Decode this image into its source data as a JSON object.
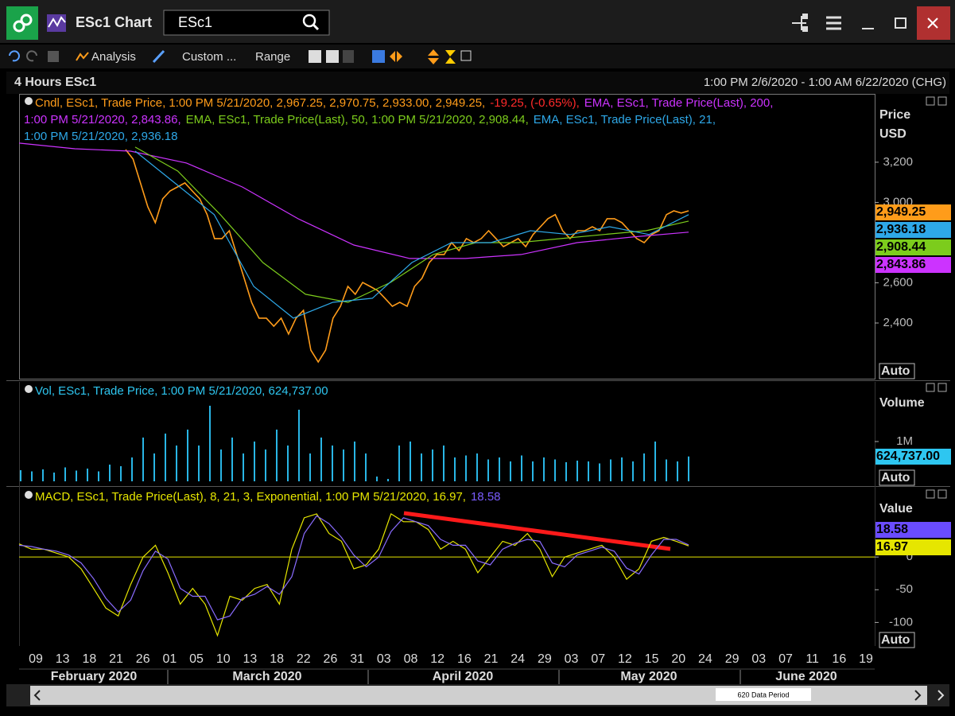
{
  "window": {
    "title": "ESc1 Chart",
    "search": "ESc1"
  },
  "toolbar": {
    "analysis": "Analysis",
    "custom": "Custom ...",
    "range": "Range"
  },
  "header": {
    "title": "4 Hours ESc1",
    "period": "1:00 PM 2/6/2020 - 1:00 AM 6/22/2020 (CHG)"
  },
  "chart_data": [
    {
      "type": "line",
      "ylabel": "Price",
      "yunit": "USD",
      "auto": "Auto",
      "legend": [
        {
          "text": "Cndl, ESc1, Trade Price, 1:00 PM 5/21/2020, 2,967.25, 2,970.75, 2,933.00, 2,949.25,",
          "color": "#ff9c1a"
        },
        {
          "text": "-19.25, (-0.65%),",
          "color": "#ff2a2a"
        },
        {
          "text": "EMA, ESc1, Trade Price(Last),  200,",
          "color": "#cc33ff"
        },
        {
          "text": "1:00 PM 5/21/2020, 2,843.86,",
          "color": "#cc33ff"
        },
        {
          "text": "EMA, ESc1, Trade Price(Last),  50,  1:00 PM 5/21/2020, 2,908.44,",
          "color": "#7ccc1c"
        },
        {
          "text": "EMA, ESc1, Trade Price(Last),  21,",
          "color": "#2ea8e8"
        },
        {
          "text": "1:00 PM 5/21/2020, 2,936.18",
          "color": "#2ea8e8"
        }
      ],
      "ylim": [
        2119,
        3540
      ],
      "yticks": [
        {
          "value": 2400,
          "label": "2,400"
        },
        {
          "value": 2600,
          "label": "2,600"
        },
        {
          "value": 3000,
          "label": "3,000"
        },
        {
          "value": 3200,
          "label": "3,200"
        }
      ],
      "series": [
        {
          "color": "#ff9c1a",
          "values": [
            3263,
            3216,
            3097,
            2978,
            2899,
            3018,
            3057,
            3077,
            3097,
            3057,
            3018,
            2939,
            2820,
            2820,
            2859,
            2741,
            2622,
            2503,
            2424,
            2424,
            2384,
            2424,
            2345,
            2424,
            2463,
            2265,
            2206,
            2265,
            2424,
            2483,
            2582,
            2543,
            2602,
            2582,
            2562,
            2523,
            2483,
            2503,
            2483,
            2582,
            2622,
            2701,
            2741,
            2741,
            2800,
            2760,
            2820,
            2800,
            2820,
            2859,
            2820,
            2780,
            2800,
            2820,
            2780,
            2840,
            2879,
            2919,
            2939,
            2859,
            2820,
            2859,
            2859,
            2879,
            2859,
            2919,
            2919,
            2899,
            2859,
            2820,
            2800,
            2840,
            2859,
            2939,
            2958,
            2947,
            2958
          ]
        },
        {
          "color": "#cc33ff",
          "values": [
            3295,
            3267,
            3255,
            3196,
            3077,
            2919,
            2788,
            2721,
            2721,
            2741,
            2800,
            2828,
            2852
          ]
        },
        {
          "color": "#7ccc1c",
          "values": [
            3275,
            3156,
            2939,
            2701,
            2543,
            2503,
            2602,
            2741,
            2800,
            2800,
            2820,
            2840,
            2859,
            2907
          ]
        },
        {
          "color": "#2ea8e8",
          "values": [
            3255,
            3097,
            2939,
            2582,
            2424,
            2503,
            2523,
            2701,
            2800,
            2800,
            2859,
            2840,
            2879,
            2840,
            2939
          ]
        }
      ],
      "last_labels": [
        {
          "value": 2949.25,
          "label": "2,949.25",
          "color": "#ff9c1a",
          "text_color": "#000000"
        },
        {
          "value": 2936.18,
          "label": "2,936.18",
          "color": "#2ea8e8",
          "text_color": "#000000"
        },
        {
          "value": 2908.44,
          "label": "2,908.44",
          "color": "#7ccc1c",
          "text_color": "#000000"
        },
        {
          "value": 2843.86,
          "label": "2,843.86",
          "color": "#cc33ff",
          "text_color": "#000000"
        }
      ]
    },
    {
      "type": "bar",
      "ylabel": "Volume",
      "auto": "Auto",
      "legend": [
        {
          "text": "Vol, ESc1, Trade Price, 1:00 PM 5/21/2020, 624,737.00",
          "color": "#2ec6f0"
        }
      ],
      "ylim": [
        0,
        2500000
      ],
      "yticks": [
        {
          "value": 1000000,
          "label": "1M"
        }
      ],
      "series": [
        {
          "color": "#29b6e6",
          "values": [
            280000,
            250000,
            300000,
            220000,
            350000,
            270000,
            320000,
            250000,
            420000,
            380000,
            600000,
            1100000,
            700000,
            1200000,
            900000,
            1300000,
            900000,
            1900000,
            800000,
            1100000,
            700000,
            1000000,
            800000,
            1300000,
            900000,
            1800000,
            700000,
            1100000,
            900000,
            800000,
            1000000,
            700000,
            120000,
            60000,
            900000,
            1000000,
            700000,
            800000,
            900000,
            600000,
            650000,
            700000,
            550000,
            600000,
            500000,
            650000,
            500000,
            600000,
            550000,
            480000,
            520000,
            500000,
            450000,
            550000,
            600000,
            500000,
            700000,
            1000000,
            550000,
            500000,
            624737
          ]
        }
      ],
      "last_labels": [
        {
          "value": 624737,
          "label": "624,737.00",
          "color": "#2ec6f0",
          "text_color": "#000000"
        }
      ]
    },
    {
      "type": "line",
      "ylabel": "Value",
      "auto": "Auto",
      "zero_line_color": "#e6e600",
      "legend": [
        {
          "text": "MACD, ESc1, Trade Price(Last),  8, 21, 3, Exponential,  1:00 PM 5/21/2020, 16.97,",
          "color": "#e6e600"
        },
        {
          "text": "18.58",
          "color": "#7a5cff"
        }
      ],
      "ylim": [
        -136,
        106
      ],
      "yticks": [
        -100,
        -50,
        0
      ],
      "series": [
        {
          "color": "#e6e600",
          "values": [
            20,
            12,
            12,
            6,
            0,
            -18,
            -48,
            -78,
            -90,
            -42,
            0,
            18,
            -24,
            -72,
            -48,
            -72,
            -120,
            -60,
            -66,
            -48,
            -42,
            -72,
            12,
            60,
            66,
            36,
            24,
            -18,
            -12,
            12,
            66,
            54,
            54,
            42,
            12,
            24,
            12,
            -24,
            0,
            24,
            18,
            36,
            12,
            -30,
            0,
            6,
            12,
            18,
            0,
            -34,
            -18,
            24,
            30,
            24,
            16.97
          ]
        },
        {
          "color": "#8a6cff",
          "values": [
            18,
            16,
            12,
            9,
            3,
            -9,
            -33,
            -63,
            -84,
            -66,
            -21,
            9,
            -3,
            -48,
            -60,
            -60,
            -96,
            -90,
            -63,
            -57,
            -45,
            -57,
            -30,
            36,
            63,
            51,
            30,
            3,
            -15,
            0,
            39,
            60,
            54,
            48,
            27,
            18,
            18,
            -6,
            -12,
            12,
            21,
            27,
            24,
            -9,
            -15,
            3,
            9,
            15,
            9,
            -17,
            -26,
            3,
            27,
            27,
            18.58
          ]
        }
      ],
      "last_labels": [
        {
          "value": 18.58,
          "label": "18.58",
          "color": "#6a4cff",
          "text_color": "#000000"
        },
        {
          "value": 16.97,
          "label": "16.97",
          "color": "#e6e600",
          "text_color": "#000000"
        }
      ]
    }
  ],
  "x_axis": {
    "days": [
      "09",
      "13",
      "18",
      "21",
      "26",
      "01",
      "05",
      "10",
      "13",
      "18",
      "22",
      "26",
      "31",
      "03",
      "08",
      "12",
      "16",
      "21",
      "24",
      "29",
      "03",
      "07",
      "12",
      "15",
      "20",
      "24",
      "29",
      "03",
      "07",
      "11",
      "16",
      "19"
    ],
    "months": [
      "February 2020",
      "March 2020",
      "April 2020",
      "May 2020",
      "June 2020"
    ]
  },
  "footer": {
    "data_period": "620 Data Period"
  }
}
